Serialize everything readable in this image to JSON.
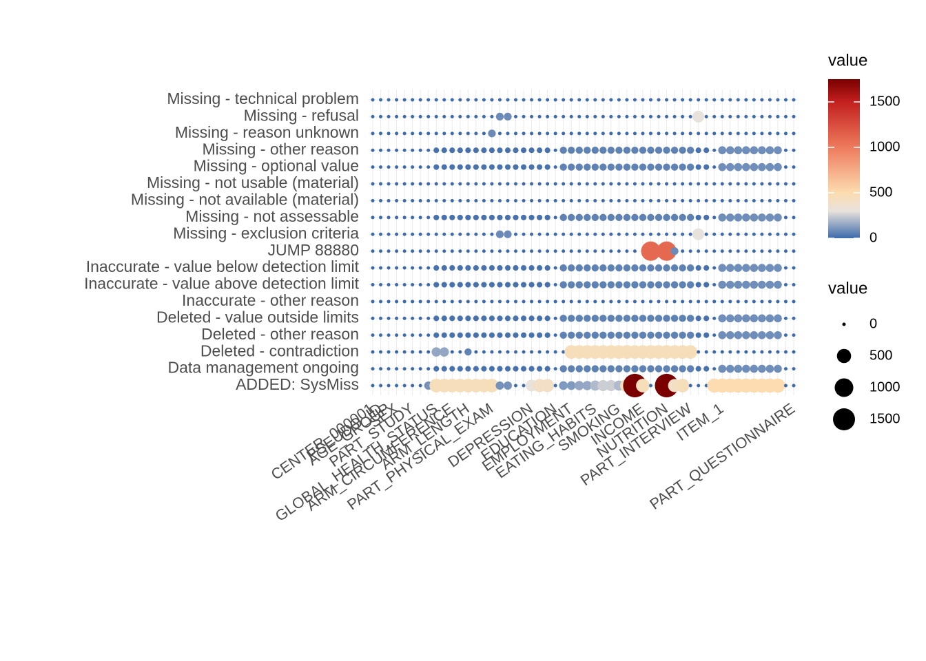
{
  "chart_data": {
    "type": "dot-matrix",
    "row_categories": [
      "Missing - technical problem",
      "Missing - refusal",
      "Missing - reason unknown",
      "Missing - other reason",
      "Missing - optional value",
      "Missing - not usable (material)",
      "Missing - not available (material)",
      "Missing - not assessable",
      "Missing - exclusion criteria",
      "JUMP 88880",
      "Inaccurate - value below detection limit",
      "Inaccurate - value above detection limit",
      "Inaccurate - other reason",
      "Deleted - value outside limits",
      "Deleted - other reason",
      "Deleted - contradiction",
      "Data management ongoing",
      "ADDED: SysMiss"
    ],
    "categories": [
      "CENTER_000001",
      "PSEUDO_ID",
      "AGE_GROUP",
      "SEX",
      null,
      "PART_STUDY",
      null,
      null,
      "GLOBAL_HEALTH_STATUS",
      null,
      "ARM_CIRCUMFERENCE",
      null,
      "ARM_LENGTH",
      null,
      null,
      "PART_PHYSICAL_EXAM",
      null,
      null,
      null,
      null,
      "DEPRESSION",
      null,
      null,
      "EDUCATION",
      null,
      "EMPLOYMENT",
      null,
      null,
      "EATING_HABITS",
      null,
      null,
      "SMOKING",
      null,
      null,
      "INCOME",
      null,
      null,
      "NUTRITION",
      null,
      null,
      "PART_INTERVIEW",
      null,
      null,
      null,
      "ITEM_1",
      null,
      null,
      null,
      null,
      null,
      null,
      null,
      null,
      "PART_QUESTIONNAIRE"
    ],
    "rows": [
      [
        0,
        0,
        0,
        0,
        0,
        0,
        0,
        0,
        0,
        0,
        0,
        0,
        0,
        0,
        0,
        0,
        0,
        0,
        0,
        0,
        0,
        0,
        0,
        0,
        0,
        0,
        0,
        0,
        0,
        0,
        0,
        0,
        0,
        0,
        0,
        0,
        0,
        0,
        0,
        0,
        0,
        0,
        0,
        0,
        0,
        0,
        0,
        0,
        0,
        0,
        0,
        0,
        0,
        0
      ],
      [
        0,
        0,
        0,
        0,
        0,
        0,
        0,
        0,
        0,
        0,
        0,
        0,
        0,
        0,
        0,
        0,
        80,
        80,
        0,
        0,
        0,
        0,
        0,
        0,
        0,
        0,
        0,
        0,
        0,
        0,
        0,
        0,
        0,
        0,
        0,
        0,
        0,
        0,
        0,
        0,
        0,
        300,
        0,
        0,
        0,
        0,
        0,
        0,
        0,
        0,
        0,
        0,
        0,
        0
      ],
      [
        0,
        0,
        0,
        0,
        0,
        0,
        0,
        0,
        0,
        0,
        0,
        0,
        0,
        0,
        0,
        80,
        0,
        0,
        0,
        0,
        0,
        0,
        0,
        0,
        0,
        0,
        0,
        0,
        0,
        0,
        0,
        0,
        0,
        0,
        0,
        0,
        0,
        0,
        0,
        0,
        0,
        0,
        0,
        0,
        0,
        0,
        0,
        0,
        0,
        0,
        0,
        0,
        0,
        0
      ],
      [
        0,
        0,
        0,
        0,
        0,
        0,
        0,
        0,
        20,
        20,
        20,
        20,
        20,
        20,
        20,
        20,
        20,
        20,
        20,
        20,
        20,
        20,
        20,
        0,
        60,
        60,
        60,
        60,
        60,
        60,
        60,
        60,
        60,
        60,
        60,
        60,
        60,
        60,
        60,
        60,
        60,
        20,
        20,
        0,
        90,
        90,
        90,
        90,
        90,
        90,
        90,
        90,
        0,
        0
      ],
      [
        0,
        0,
        0,
        0,
        0,
        0,
        0,
        0,
        20,
        20,
        20,
        20,
        20,
        20,
        20,
        20,
        20,
        20,
        20,
        20,
        20,
        20,
        20,
        0,
        60,
        60,
        60,
        60,
        60,
        60,
        60,
        60,
        60,
        60,
        60,
        60,
        60,
        60,
        60,
        60,
        60,
        20,
        20,
        0,
        90,
        90,
        90,
        90,
        90,
        90,
        90,
        90,
        0,
        0
      ],
      [
        0,
        0,
        0,
        0,
        0,
        0,
        0,
        0,
        0,
        0,
        0,
        0,
        0,
        0,
        0,
        0,
        0,
        0,
        0,
        0,
        0,
        0,
        0,
        0,
        0,
        0,
        0,
        0,
        0,
        0,
        0,
        0,
        0,
        0,
        0,
        0,
        0,
        0,
        0,
        0,
        0,
        0,
        0,
        0,
        0,
        0,
        0,
        0,
        0,
        0,
        0,
        0,
        0,
        0
      ],
      [
        0,
        0,
        0,
        0,
        0,
        0,
        0,
        0,
        0,
        0,
        0,
        0,
        0,
        0,
        0,
        0,
        0,
        0,
        0,
        0,
        0,
        0,
        0,
        0,
        0,
        0,
        0,
        0,
        0,
        0,
        0,
        0,
        0,
        0,
        0,
        0,
        0,
        0,
        0,
        0,
        0,
        0,
        0,
        0,
        0,
        0,
        0,
        0,
        0,
        0,
        0,
        0,
        0,
        0
      ],
      [
        0,
        0,
        0,
        0,
        0,
        0,
        0,
        0,
        20,
        20,
        20,
        20,
        20,
        20,
        20,
        20,
        20,
        20,
        20,
        20,
        20,
        20,
        20,
        0,
        60,
        60,
        60,
        60,
        60,
        60,
        60,
        60,
        60,
        60,
        60,
        60,
        60,
        60,
        60,
        60,
        60,
        20,
        20,
        0,
        90,
        90,
        90,
        90,
        90,
        90,
        90,
        90,
        0,
        0
      ],
      [
        0,
        0,
        0,
        0,
        0,
        0,
        0,
        0,
        0,
        0,
        0,
        0,
        0,
        0,
        0,
        0,
        80,
        80,
        0,
        0,
        0,
        0,
        0,
        0,
        0,
        0,
        0,
        0,
        0,
        0,
        0,
        0,
        0,
        0,
        0,
        0,
        0,
        0,
        0,
        0,
        0,
        300,
        0,
        0,
        0,
        0,
        0,
        0,
        0,
        0,
        0,
        0,
        0,
        0
      ],
      [
        0,
        0,
        0,
        0,
        0,
        0,
        0,
        0,
        0,
        0,
        0,
        0,
        0,
        0,
        0,
        0,
        0,
        0,
        0,
        0,
        0,
        0,
        0,
        0,
        0,
        0,
        0,
        0,
        0,
        0,
        0,
        0,
        0,
        0,
        0,
        1100,
        0,
        1100,
        80,
        0,
        0,
        0,
        0,
        0,
        0,
        0,
        0,
        0,
        0,
        0,
        0,
        0,
        0,
        0
      ],
      [
        0,
        0,
        0,
        0,
        0,
        0,
        0,
        0,
        20,
        20,
        20,
        20,
        20,
        20,
        20,
        20,
        20,
        20,
        20,
        20,
        20,
        20,
        20,
        0,
        60,
        60,
        60,
        60,
        60,
        60,
        60,
        60,
        60,
        60,
        60,
        60,
        60,
        60,
        60,
        60,
        60,
        20,
        20,
        0,
        90,
        90,
        90,
        90,
        90,
        90,
        90,
        90,
        0,
        0
      ],
      [
        0,
        0,
        0,
        0,
        0,
        0,
        0,
        0,
        20,
        20,
        20,
        20,
        20,
        20,
        20,
        20,
        20,
        20,
        20,
        20,
        20,
        20,
        20,
        0,
        60,
        60,
        60,
        60,
        60,
        60,
        60,
        60,
        60,
        60,
        60,
        60,
        60,
        60,
        60,
        60,
        60,
        20,
        20,
        0,
        90,
        90,
        90,
        90,
        90,
        90,
        90,
        90,
        0,
        0
      ],
      [
        0,
        0,
        0,
        0,
        0,
        0,
        0,
        0,
        0,
        0,
        0,
        0,
        0,
        0,
        0,
        0,
        0,
        0,
        0,
        0,
        0,
        0,
        0,
        0,
        0,
        0,
        0,
        0,
        0,
        0,
        0,
        0,
        0,
        0,
        0,
        0,
        0,
        0,
        0,
        0,
        0,
        0,
        0,
        0,
        0,
        0,
        0,
        0,
        0,
        0,
        0,
        0,
        0,
        0
      ],
      [
        0,
        0,
        0,
        0,
        0,
        0,
        0,
        0,
        20,
        20,
        20,
        20,
        20,
        20,
        20,
        20,
        20,
        20,
        20,
        20,
        20,
        20,
        20,
        0,
        60,
        60,
        60,
        60,
        60,
        60,
        60,
        60,
        60,
        60,
        60,
        60,
        60,
        60,
        60,
        60,
        60,
        20,
        20,
        0,
        90,
        90,
        90,
        90,
        90,
        90,
        90,
        90,
        0,
        0
      ],
      [
        0,
        0,
        0,
        0,
        0,
        0,
        0,
        0,
        20,
        20,
        20,
        20,
        20,
        20,
        20,
        20,
        20,
        20,
        20,
        20,
        20,
        20,
        20,
        0,
        60,
        60,
        60,
        60,
        60,
        60,
        60,
        60,
        60,
        60,
        60,
        60,
        60,
        60,
        60,
        60,
        60,
        20,
        20,
        0,
        90,
        90,
        90,
        90,
        90,
        90,
        90,
        90,
        0,
        0
      ],
      [
        0,
        0,
        0,
        0,
        0,
        0,
        0,
        0,
        150,
        150,
        0,
        0,
        60,
        0,
        0,
        0,
        0,
        0,
        0,
        0,
        0,
        0,
        0,
        0,
        0,
        450,
        450,
        450,
        450,
        450,
        450,
        450,
        450,
        450,
        450,
        450,
        450,
        450,
        450,
        450,
        450,
        0,
        0,
        0,
        0,
        0,
        0,
        0,
        0,
        0,
        0,
        0,
        0,
        0
      ],
      [
        0,
        0,
        0,
        0,
        0,
        0,
        0,
        0,
        20,
        20,
        20,
        20,
        20,
        20,
        20,
        20,
        20,
        20,
        20,
        20,
        20,
        20,
        20,
        0,
        60,
        60,
        60,
        60,
        60,
        60,
        60,
        60,
        60,
        60,
        60,
        60,
        60,
        60,
        60,
        60,
        60,
        20,
        20,
        0,
        90,
        90,
        90,
        90,
        90,
        90,
        90,
        90,
        0,
        0
      ],
      [
        0,
        0,
        0,
        0,
        0,
        0,
        0,
        100,
        450,
        450,
        450,
        450,
        450,
        450,
        450,
        450,
        100,
        100,
        0,
        0,
        300,
        400,
        400,
        0,
        120,
        120,
        150,
        150,
        200,
        250,
        250,
        200,
        450,
        1750,
        450,
        0,
        0,
        1750,
        400,
        450,
        0,
        0,
        0,
        500,
        500,
        500,
        500,
        500,
        500,
        500,
        500,
        500,
        0,
        0
      ]
    ],
    "color_scale": {
      "values": [
        0,
        300,
        500,
        1000,
        1500,
        1750
      ],
      "colors": [
        "#3d6aab",
        "#e8e2dc",
        "#fcdcb0",
        "#ee7a5c",
        "#c3201f",
        "#7a0000"
      ]
    },
    "size_max": 1500,
    "color_legend_title": "value",
    "color_legend_ticks": [
      0,
      500,
      1000,
      1500
    ],
    "size_legend_title": "value",
    "size_legend_values": [
      0,
      500,
      1000,
      1500
    ]
  }
}
